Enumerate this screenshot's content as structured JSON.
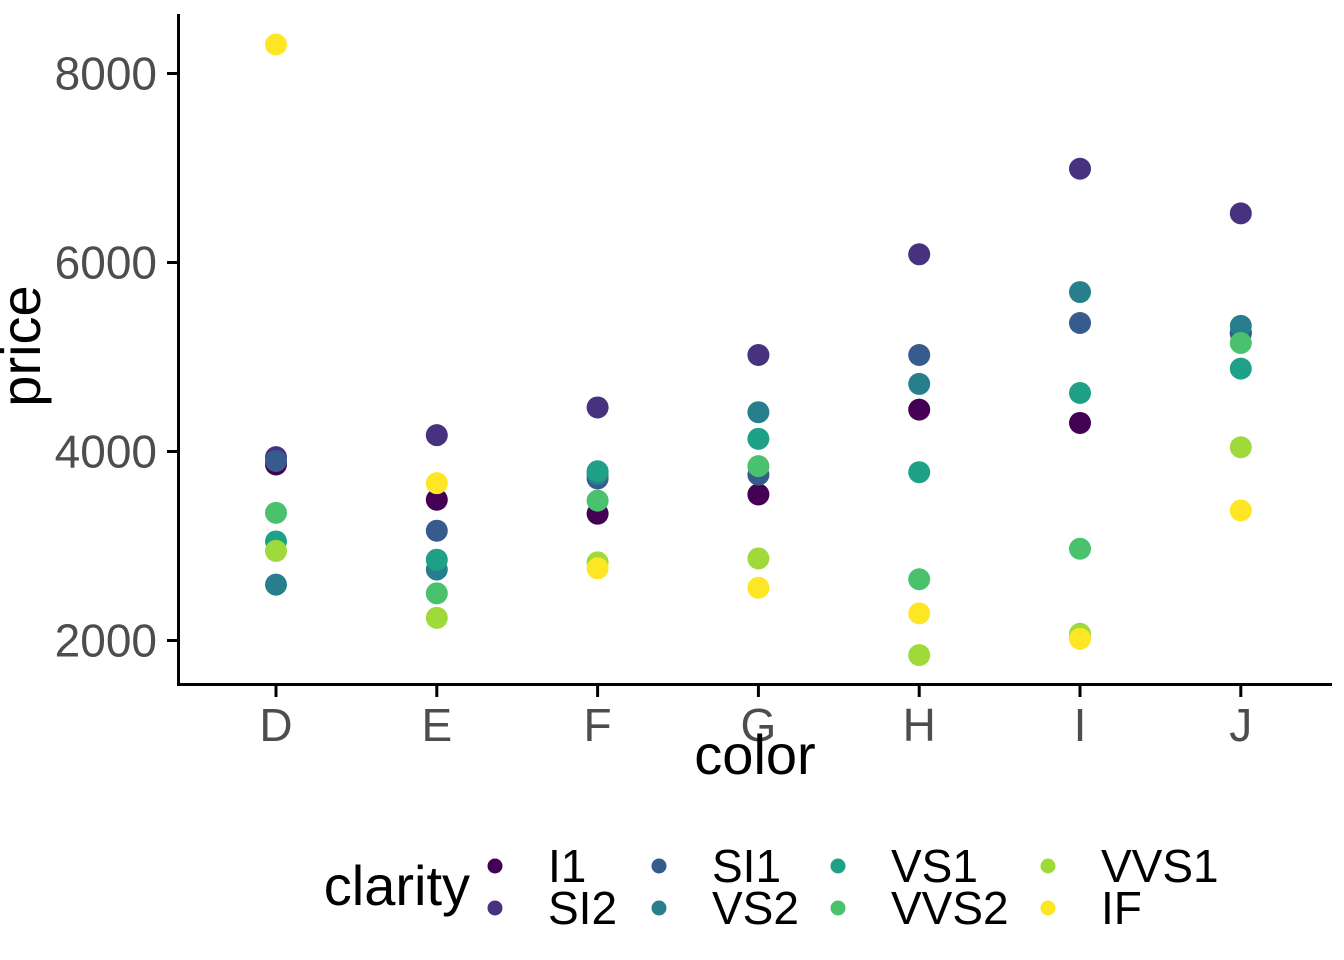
{
  "figure": {
    "background": "#FFFFFF",
    "axis_line_color": "#000000",
    "tick_label_color": "#4D4D4D",
    "title_color": "#000000"
  },
  "chart_data": {
    "type": "scatter",
    "title": "",
    "xlabel": "color",
    "ylabel": "price",
    "categories": [
      "D",
      "E",
      "F",
      "G",
      "H",
      "I",
      "J"
    ],
    "yticks": [
      2000,
      4000,
      6000,
      8000
    ],
    "ylim": [
      1700,
      8650
    ],
    "grid": "off",
    "legend": {
      "title": "clarity",
      "position": "bottom",
      "rows": 2,
      "columns": 4,
      "order": [
        "I1",
        "SI2",
        "SI1",
        "VS2",
        "VS1",
        "VVS2",
        "VVS1",
        "IF"
      ]
    },
    "series": [
      {
        "name": "I1",
        "color": "#440154",
        "values": [
          3863,
          3490,
          3342,
          3545,
          4443,
          4302,
          5254
        ]
      },
      {
        "name": "SI2",
        "color": "#46327E",
        "values": [
          3940,
          4173,
          4466,
          5021,
          6087,
          6992,
          6520
        ]
      },
      {
        "name": "SI1",
        "color": "#365C8D",
        "values": [
          3900,
          3162,
          3715,
          3755,
          5021,
          5360,
          5250
        ]
      },
      {
        "name": "VS2",
        "color": "#277F8E",
        "values": [
          2591,
          2751,
          3760,
          4416,
          4715,
          5687,
          5329
        ]
      },
      {
        "name": "VS1",
        "color": "#1FA187",
        "values": [
          3048,
          2855,
          3791,
          4134,
          3781,
          4619,
          4877
        ]
      },
      {
        "name": "VVS2",
        "color": "#4AC16D",
        "values": [
          3351,
          2499,
          3480,
          3845,
          2648,
          2971,
          5148
        ]
      },
      {
        "name": "VVS1",
        "color": "#9FDA3A",
        "values": [
          2948,
          2240,
          2827,
          2868,
          1845,
          2071,
          4045
        ]
      },
      {
        "name": "IF",
        "color": "#FDE725",
        "values": [
          8307,
          3665,
          2764,
          2558,
          2287,
          2017,
          3376
        ]
      }
    ]
  }
}
